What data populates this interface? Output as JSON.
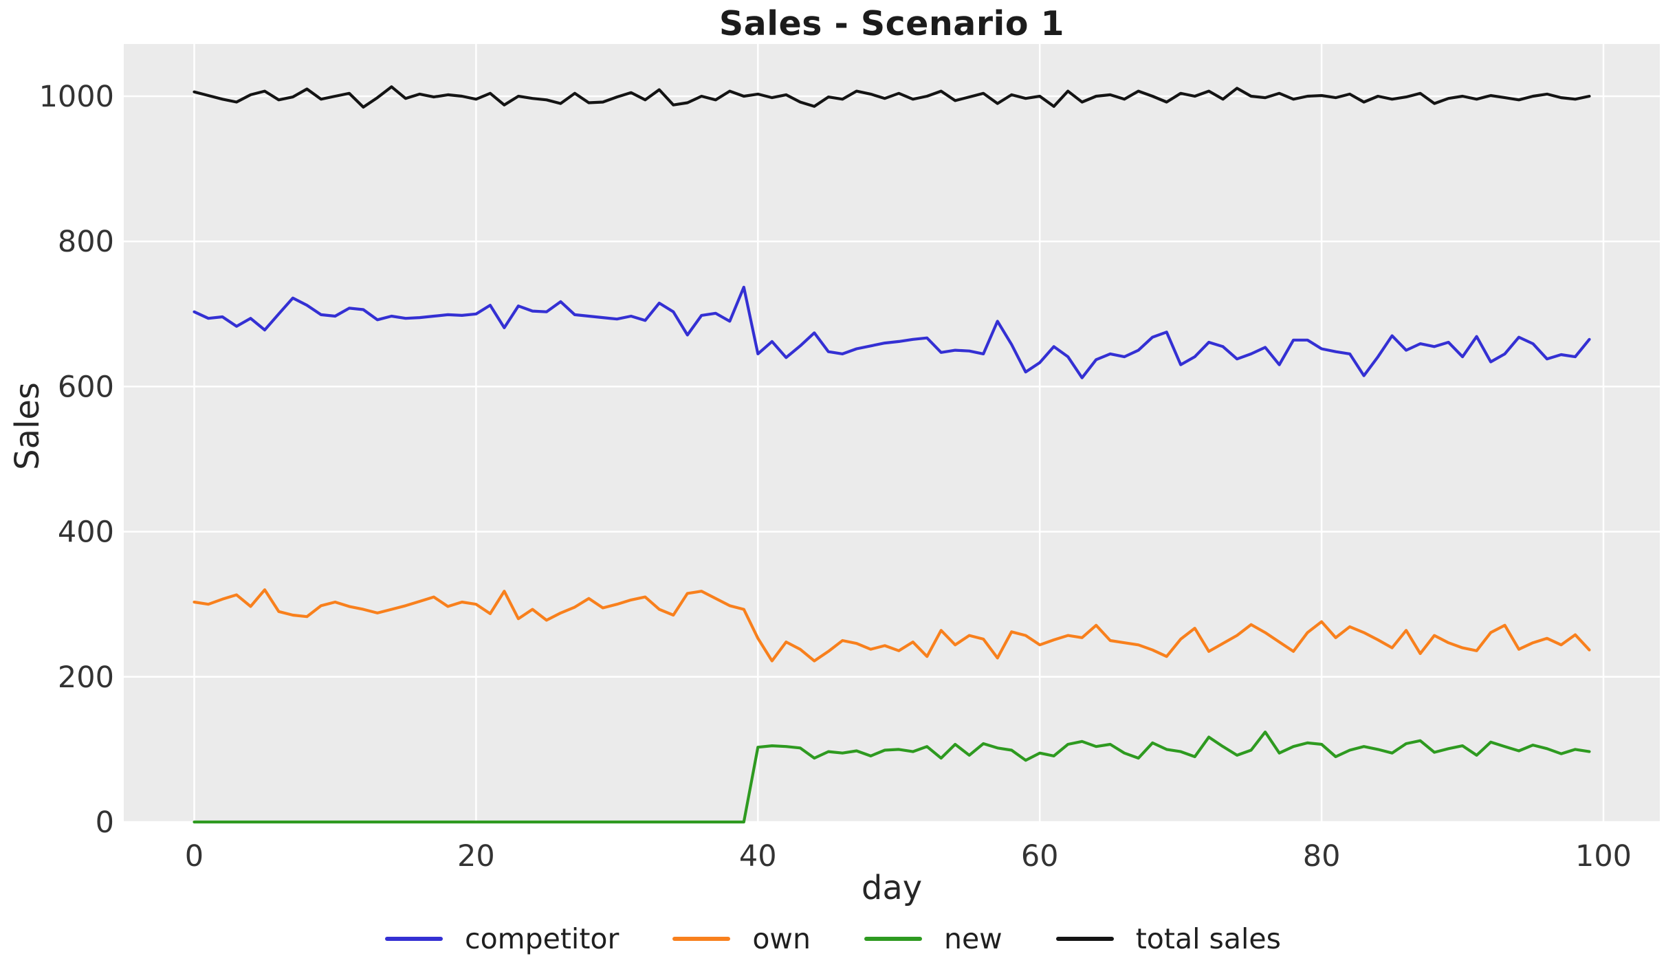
{
  "title": "Sales - Scenario 1",
  "chart_data": {
    "type": "line",
    "title": "Sales - Scenario 1",
    "xlabel": "day",
    "ylabel": "Sales",
    "x": {
      "start": 0,
      "step": 1,
      "count": 100
    },
    "xlim": [
      -5,
      104
    ],
    "ylim": [
      0,
      1072
    ],
    "xticks": [
      0,
      20,
      40,
      60,
      80,
      100
    ],
    "yticks": [
      0,
      200,
      400,
      600,
      800,
      1000
    ],
    "grid": true,
    "grid_color": "#ffffff",
    "plot_bg": "#ebebeb",
    "legend_position": "bottom-center",
    "series": [
      {
        "name": "competitor",
        "color": "#3430d3",
        "values": [
          703,
          694,
          696,
          683,
          694,
          678,
          700,
          722,
          712,
          699,
          697,
          708,
          706,
          692,
          697,
          694,
          695,
          697,
          699,
          698,
          700,
          712,
          681,
          711,
          704,
          703,
          717,
          699,
          697,
          695,
          693,
          697,
          691,
          715,
          703,
          671,
          698,
          701,
          690,
          737,
          645,
          662,
          640,
          656,
          674,
          648,
          645,
          652,
          656,
          660,
          662,
          665,
          667,
          647,
          650,
          649,
          645,
          690,
          658,
          620,
          633,
          655,
          641,
          612,
          637,
          645,
          641,
          650,
          668,
          675,
          630,
          641,
          661,
          655,
          638,
          645,
          654,
          630,
          664,
          664,
          652,
          648,
          645,
          615,
          641,
          670,
          650,
          659,
          655,
          661,
          641,
          669,
          634,
          645,
          668,
          659,
          638,
          644,
          641,
          665
        ]
      },
      {
        "name": "own",
        "color": "#f8801d",
        "values": [
          303,
          300,
          307,
          313,
          297,
          320,
          290,
          285,
          283,
          298,
          303,
          297,
          293,
          288,
          293,
          298,
          304,
          310,
          297,
          303,
          300,
          287,
          318,
          280,
          293,
          278,
          288,
          296,
          308,
          295,
          300,
          306,
          310,
          293,
          285,
          315,
          318,
          308,
          298,
          293,
          253,
          222,
          248,
          238,
          222,
          235,
          250,
          246,
          238,
          243,
          236,
          248,
          228,
          264,
          244,
          257,
          252,
          226,
          262,
          257,
          244,
          251,
          257,
          254,
          271,
          250,
          247,
          244,
          237,
          228,
          252,
          267,
          235,
          246,
          257,
          272,
          261,
          248,
          235,
          261,
          276,
          254,
          269,
          261,
          251,
          240,
          264,
          232,
          257,
          247,
          240,
          236,
          261,
          271,
          238,
          247,
          253,
          244,
          258,
          237
        ]
      },
      {
        "name": "new",
        "color": "#2e9a20",
        "values": [
          0,
          0,
          0,
          0,
          0,
          0,
          0,
          0,
          0,
          0,
          0,
          0,
          0,
          0,
          0,
          0,
          0,
          0,
          0,
          0,
          0,
          0,
          0,
          0,
          0,
          0,
          0,
          0,
          0,
          0,
          0,
          0,
          0,
          0,
          0,
          0,
          0,
          0,
          0,
          0,
          103,
          105,
          104,
          102,
          88,
          97,
          95,
          98,
          91,
          99,
          100,
          97,
          104,
          88,
          107,
          92,
          108,
          102,
          99,
          85,
          95,
          91,
          107,
          111,
          104,
          107,
          95,
          88,
          109,
          100,
          97,
          90,
          117,
          104,
          92,
          99,
          124,
          95,
          104,
          109,
          107,
          90,
          99,
          104,
          100,
          95,
          108,
          112,
          96,
          101,
          105,
          92,
          110,
          104,
          98,
          106,
          101,
          94,
          100,
          97
        ]
      },
      {
        "name": "total sales",
        "color": "#141414",
        "values": [
          1006,
          1001,
          996,
          992,
          1002,
          1007,
          995,
          999,
          1010,
          996,
          1000,
          1004,
          985,
          998,
          1013,
          997,
          1003,
          999,
          1002,
          1000,
          996,
          1004,
          988,
          1000,
          997,
          995,
          990,
          1004,
          991,
          992,
          999,
          1005,
          995,
          1009,
          988,
          991,
          1000,
          995,
          1007,
          1000,
          1003,
          998,
          1002,
          992,
          986,
          999,
          996,
          1007,
          1003,
          997,
          1004,
          996,
          1000,
          1007,
          994,
          999,
          1004,
          990,
          1002,
          997,
          1000,
          986,
          1007,
          992,
          1000,
          1002,
          996,
          1007,
          1000,
          992,
          1004,
          1000,
          1007,
          996,
          1011,
          1000,
          998,
          1004,
          996,
          1000,
          1001,
          998,
          1003,
          992,
          1000,
          996,
          999,
          1004,
          990,
          997,
          1000,
          996,
          1001,
          998,
          995,
          1000,
          1003,
          998,
          996,
          1000
        ]
      }
    ]
  }
}
